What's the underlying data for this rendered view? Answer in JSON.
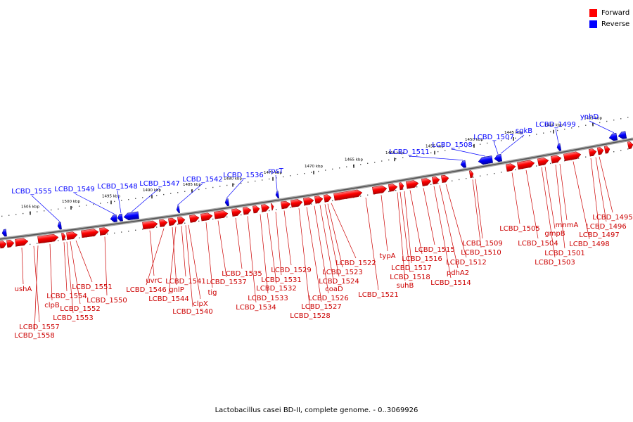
{
  "legend": {
    "forward_label": "Forward",
    "reverse_label": "Reverse",
    "forward_color": "#ff0000",
    "reverse_color": "#0000ff"
  },
  "caption": "Lactobacillus casei BD-II, complete genome. - 0..3069926",
  "scale_ticks": [
    "1505 kbp",
    "1500 kbp",
    "1495 kbp",
    "1490 kbp",
    "1485 kbp",
    "1480 kbp",
    "1475 kbp",
    "1470 kbp",
    "1465 kbp",
    "1460 kbp",
    "1455 kbp",
    "1450 kbp",
    "1445 kbp",
    "1440 kbp",
    "1435 kbp"
  ],
  "reverse_genes": [
    "LCBD_1555",
    "LCBD_1549",
    "LCBD_1548",
    "LCBD_1547",
    "LCBD_1542",
    "LCBD_1536",
    "rpsT",
    "LCBD_1511",
    "LCBD_1508",
    "LCBD_1507",
    "sgkB",
    "LCBD_1499",
    "ynhD"
  ],
  "forward_genes": [
    "ushA",
    "LCBD_1557",
    "LCBD_1558",
    "clpB",
    "LCBD_1554",
    "LCBD_1552",
    "LCBD_1553",
    "LCBD_1551",
    "LCBD_1550",
    "uvrC",
    "LCBD_1546",
    "gnlP",
    "LCBD_1544",
    "LCBD_1541",
    "clpX",
    "LCBD_1540",
    "tig",
    "LCBD_1537",
    "LCBD_1535",
    "LCBD_1534",
    "LCBD_1533",
    "LCBD_1532",
    "LCBD_1531",
    "LCBD_1529",
    "LCBD_1528",
    "LCBD_1527",
    "LCBD_1526",
    "coaD",
    "LCBD_1524",
    "LCBD_1523",
    "LCBD_1522",
    "LCBD_1521",
    "typA",
    "suhB",
    "LCBD_1518",
    "LCBD_1517",
    "LCBD_1516",
    "LCBD_1515",
    "LCBD_1514",
    "pdhA2",
    "LCBD_1512",
    "LCBD_1510",
    "LCBD_1509",
    "LCBD_1505",
    "LCBD_1504",
    "LCBD_1503",
    "gmpB",
    "LCBD_1501",
    "mnmA",
    "LCBD_1498",
    "LCBD_1497",
    "LCBD_1496",
    "LCBD_1495"
  ]
}
